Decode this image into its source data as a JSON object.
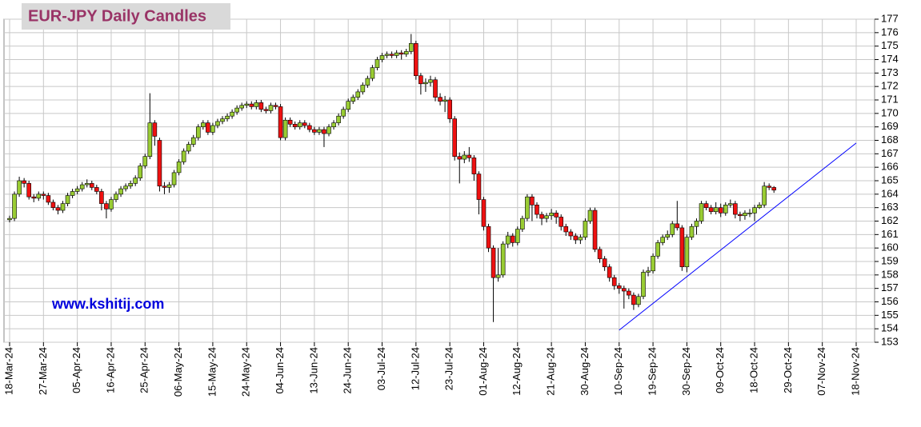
{
  "chart_data": {
    "type": "candlestick",
    "title": "EUR-JPY Daily  Candles",
    "annotation": "www.kshitij.com",
    "categories": [
      "18-Mar-24",
      null,
      null,
      null,
      null,
      null,
      null,
      "27-Mar-24",
      null,
      null,
      null,
      null,
      null,
      null,
      "05-Apr-24",
      null,
      null,
      null,
      null,
      null,
      null,
      "16-Apr-24",
      null,
      null,
      null,
      null,
      null,
      null,
      "25-Apr-24",
      null,
      null,
      null,
      null,
      null,
      null,
      "06-May-24",
      null,
      null,
      null,
      null,
      null,
      null,
      "15-May-24",
      null,
      null,
      null,
      null,
      null,
      null,
      "24-May-24",
      null,
      null,
      null,
      null,
      null,
      null,
      "04-Jun-24",
      null,
      null,
      null,
      null,
      null,
      null,
      "13-Jun-24",
      null,
      null,
      null,
      null,
      null,
      null,
      "24-Jun-24",
      null,
      null,
      null,
      null,
      null,
      null,
      "03-Jul-24",
      null,
      null,
      null,
      null,
      null,
      null,
      "12-Jul-24",
      null,
      null,
      null,
      null,
      null,
      null,
      "23-Jul-24",
      null,
      null,
      null,
      null,
      null,
      null,
      "01-Aug-24",
      null,
      null,
      null,
      null,
      null,
      null,
      "12-Aug-24",
      null,
      null,
      null,
      null,
      null,
      null,
      "21-Aug-24",
      null,
      null,
      null,
      null,
      null,
      null,
      "30-Aug-24",
      null,
      null,
      null,
      null,
      null,
      null,
      "10-Sep-24",
      null,
      null,
      null,
      null,
      null,
      null,
      "19-Sep-24",
      null,
      null,
      null,
      null,
      null,
      null,
      "30-Sep-24",
      null,
      null,
      null,
      null,
      null,
      null,
      "09-Oct-24",
      null,
      null,
      null,
      null,
      null,
      null,
      "18-Oct-24",
      null,
      null,
      null,
      null,
      null,
      null,
      "29-Oct-24",
      null,
      null,
      null,
      null,
      null,
      null,
      "07-Nov-24",
      null,
      null,
      null,
      null,
      null,
      null,
      "18-Nov-24"
    ],
    "open": [
      162.1,
      162.2,
      164.0,
      165.0,
      164.8,
      163.8,
      163.7,
      164.0,
      163.9,
      163.4,
      163.0,
      162.8,
      163.3,
      163.9,
      164.2,
      164.4,
      164.7,
      164.8,
      164.5,
      164.2,
      163.3,
      162.9,
      163.6,
      164.0,
      164.4,
      164.6,
      164.8,
      165.2,
      166.1,
      166.8,
      169.3,
      168.0,
      164.6,
      164.5,
      164.7,
      165.6,
      166.4,
      167.2,
      167.7,
      168.2,
      169.0,
      169.3,
      168.6,
      169.1,
      169.4,
      169.6,
      169.8,
      170.1,
      170.4,
      170.6,
      170.7,
      170.5,
      170.8,
      170.3,
      170.2,
      170.6,
      170.5,
      168.2,
      169.5,
      169.2,
      169.0,
      169.3,
      169.1,
      168.8,
      168.6,
      168.8,
      168.5,
      169.0,
      169.3,
      169.8,
      170.3,
      170.9,
      171.2,
      171.6,
      172.1,
      172.6,
      173.4,
      174.0,
      174.3,
      174.4,
      174.3,
      174.5,
      174.4,
      174.6,
      175.2,
      172.8,
      172.2,
      172.3,
      172.5,
      171.2,
      170.9,
      171.0,
      169.6,
      166.8,
      166.6,
      166.9,
      166.7,
      165.5,
      163.6,
      161.6,
      160.0,
      157.8,
      158.0,
      160.3,
      160.9,
      160.4,
      161.4,
      162.2,
      163.8,
      163.2,
      162.5,
      162.2,
      162.4,
      162.6,
      162.3,
      161.6,
      161.2,
      160.9,
      160.6,
      160.8,
      162.0,
      162.8,
      159.9,
      159.2,
      158.6,
      157.8,
      157.2,
      157.0,
      156.8,
      156.5,
      155.8,
      156.4,
      158.2,
      158.3,
      159.4,
      160.4,
      160.8,
      161.0,
      161.8,
      161.5,
      158.6,
      160.8,
      161.6,
      162.0,
      163.3,
      163.0,
      162.7,
      163.0,
      162.6,
      163.2,
      163.3,
      162.5,
      162.4,
      162.6,
      162.6,
      163.0,
      163.2,
      164.6,
      164.5,
      null,
      null,
      null,
      null,
      null,
      null,
      null,
      null,
      null,
      null,
      null,
      null,
      null,
      null,
      null,
      null,
      null
    ],
    "high": [
      162.4,
      164.2,
      165.3,
      165.2,
      165.0,
      164.0,
      164.2,
      164.2,
      164.1,
      163.6,
      163.2,
      163.5,
      164.1,
      164.4,
      164.6,
      164.9,
      165.1,
      165.0,
      164.7,
      164.4,
      163.5,
      163.8,
      164.2,
      164.6,
      164.8,
      165.0,
      165.4,
      166.3,
      167.0,
      171.5,
      169.5,
      168.2,
      164.9,
      164.9,
      165.8,
      166.6,
      167.4,
      167.9,
      168.4,
      169.2,
      169.5,
      169.5,
      169.3,
      169.6,
      169.8,
      170.0,
      170.3,
      170.6,
      170.8,
      170.9,
      170.9,
      171.0,
      171.0,
      170.5,
      170.8,
      170.8,
      170.7,
      169.7,
      169.7,
      169.4,
      169.5,
      169.5,
      169.3,
      169.0,
      169.0,
      169.0,
      169.2,
      169.5,
      170.0,
      170.5,
      171.1,
      171.4,
      171.8,
      172.3,
      172.8,
      173.6,
      174.2,
      174.5,
      174.6,
      174.6,
      174.7,
      174.7,
      174.8,
      175.9,
      175.4,
      173.0,
      172.6,
      172.8,
      172.7,
      171.5,
      171.3,
      171.2,
      169.8,
      167.1,
      167.2,
      167.5,
      166.9,
      165.7,
      163.8,
      161.8,
      160.2,
      160.0,
      160.5,
      161.2,
      161.1,
      161.6,
      162.4,
      164.0,
      164.0,
      163.4,
      162.7,
      162.6,
      162.9,
      162.8,
      162.5,
      161.8,
      161.4,
      161.1,
      161.0,
      162.2,
      163.0,
      163.0,
      160.1,
      159.4,
      158.8,
      158.0,
      157.4,
      157.2,
      157.0,
      156.7,
      156.6,
      158.4,
      158.6,
      159.6,
      160.6,
      161.0,
      161.3,
      162.0,
      163.5,
      161.7,
      161.0,
      161.8,
      162.2,
      163.5,
      163.5,
      163.2,
      163.4,
      163.3,
      163.4,
      163.6,
      163.5,
      162.7,
      162.8,
      162.9,
      163.2,
      163.4,
      164.9,
      164.8,
      164.6,
      null,
      null,
      null,
      null,
      null,
      null,
      null,
      null,
      null,
      null,
      null,
      null,
      null,
      null,
      null,
      null,
      null
    ],
    "low": [
      161.9,
      162.0,
      163.8,
      164.5,
      163.6,
      163.4,
      163.5,
      163.6,
      163.2,
      162.8,
      162.5,
      162.6,
      163.1,
      163.7,
      164.0,
      164.2,
      164.5,
      164.3,
      164.0,
      162.8,
      162.2,
      162.7,
      163.4,
      163.8,
      164.2,
      164.4,
      164.6,
      165.0,
      165.9,
      166.6,
      167.6,
      164.2,
      164.0,
      164.1,
      164.5,
      165.4,
      166.2,
      167.0,
      167.5,
      168.0,
      168.8,
      168.4,
      168.4,
      168.9,
      169.2,
      169.4,
      169.6,
      169.9,
      170.2,
      170.4,
      170.3,
      170.3,
      170.1,
      170.0,
      170.0,
      170.3,
      168.0,
      168.0,
      169.0,
      168.8,
      168.8,
      168.9,
      168.6,
      168.4,
      168.4,
      167.5,
      168.3,
      168.8,
      169.1,
      169.6,
      170.1,
      170.7,
      171.0,
      171.4,
      171.9,
      172.4,
      173.2,
      173.8,
      174.1,
      174.1,
      174.1,
      174.0,
      174.2,
      174.4,
      172.5,
      171.4,
      171.6,
      172.0,
      170.9,
      170.6,
      170.1,
      169.3,
      166.5,
      164.8,
      166.3,
      166.4,
      165.0,
      162.5,
      161.3,
      159.7,
      154.5,
      157.5,
      157.8,
      160.0,
      160.1,
      160.2,
      161.2,
      162.0,
      162.0,
      162.2,
      161.7,
      161.9,
      162.1,
      161.8,
      161.3,
      160.9,
      160.6,
      160.3,
      160.3,
      160.6,
      161.8,
      159.7,
      158.9,
      158.3,
      157.5,
      156.9,
      156.6,
      155.5,
      156.2,
      155.4,
      155.6,
      156.2,
      157.9,
      158.1,
      159.2,
      160.2,
      160.6,
      160.8,
      161.3,
      158.3,
      158.2,
      160.6,
      161.0,
      161.8,
      162.8,
      162.5,
      162.5,
      162.3,
      162.4,
      163.0,
      162.2,
      162.0,
      162.1,
      162.3,
      162.0,
      162.9,
      163.0,
      164.3,
      164.1,
      null,
      null,
      null,
      null,
      null,
      null,
      null,
      null,
      null,
      null,
      null,
      null,
      null,
      null,
      null,
      null,
      null
    ],
    "close": [
      162.2,
      164.0,
      165.0,
      164.8,
      163.8,
      163.7,
      164.0,
      163.9,
      163.4,
      163.0,
      162.8,
      163.3,
      163.9,
      164.2,
      164.4,
      164.7,
      164.8,
      164.5,
      164.2,
      163.3,
      162.9,
      163.6,
      164.0,
      164.4,
      164.6,
      164.8,
      165.2,
      166.1,
      166.8,
      169.3,
      168.3,
      164.6,
      164.5,
      164.7,
      165.6,
      166.4,
      167.2,
      167.7,
      168.2,
      169.0,
      169.3,
      168.6,
      169.1,
      169.4,
      169.6,
      169.8,
      170.1,
      170.4,
      170.6,
      170.7,
      170.5,
      170.8,
      170.3,
      170.2,
      170.6,
      170.5,
      168.2,
      169.5,
      169.2,
      169.0,
      169.3,
      169.1,
      168.8,
      168.6,
      168.8,
      168.5,
      169.0,
      169.3,
      169.8,
      170.3,
      170.9,
      171.2,
      171.6,
      172.1,
      172.6,
      173.4,
      174.0,
      174.3,
      174.4,
      174.3,
      174.5,
      174.4,
      174.6,
      175.2,
      172.8,
      172.2,
      172.3,
      172.5,
      171.2,
      170.9,
      171.0,
      169.6,
      166.8,
      166.6,
      166.9,
      166.7,
      165.5,
      163.6,
      161.6,
      160.0,
      157.8,
      158.0,
      160.3,
      160.9,
      160.4,
      161.4,
      162.2,
      163.8,
      163.2,
      162.5,
      162.2,
      162.4,
      162.6,
      162.3,
      161.6,
      161.2,
      160.9,
      160.6,
      160.8,
      162.0,
      162.8,
      159.9,
      159.2,
      158.6,
      157.8,
      157.2,
      157.0,
      156.8,
      156.5,
      155.8,
      156.4,
      158.2,
      158.3,
      159.4,
      160.4,
      160.8,
      161.0,
      161.8,
      161.5,
      158.6,
      160.8,
      161.6,
      162.0,
      163.3,
      163.0,
      162.7,
      163.0,
      162.6,
      163.2,
      163.3,
      162.5,
      162.4,
      162.6,
      162.6,
      163.0,
      163.2,
      164.6,
      164.5,
      164.3,
      null,
      null,
      null,
      null,
      null,
      null,
      null,
      null,
      null,
      null,
      null,
      null,
      null,
      null,
      null,
      null,
      null
    ],
    "up_color": "#99cc33",
    "down_color": "#ee1111",
    "trendline": {
      "x": [
        "10-Sep-24",
        "18-Nov-24"
      ],
      "values": [
        153.9,
        167.8
      ],
      "color": "#0000ff"
    },
    "ylim": [
      153,
      177
    ],
    "yticks": [
      153,
      154,
      155,
      156,
      157,
      158,
      159,
      160,
      161,
      162,
      163,
      164,
      165,
      166,
      167,
      168,
      169,
      170,
      171,
      172,
      173,
      174,
      175,
      176,
      177
    ],
    "grid": true,
    "y_axis_side": "right"
  }
}
